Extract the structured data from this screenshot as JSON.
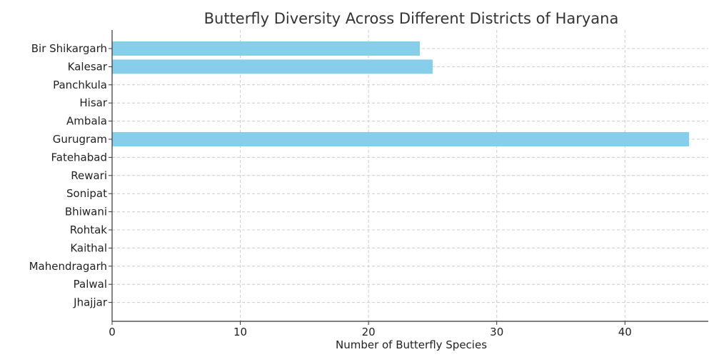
{
  "chart_data": {
    "type": "bar",
    "orientation": "horizontal",
    "title": "Butterfly Diversity Across Different Districts of Haryana",
    "xlabel": "Number of Butterfly Species",
    "ylabel": "",
    "xlim": [
      0,
      46.5
    ],
    "xticks": [
      0,
      10,
      20,
      30,
      40
    ],
    "grid": true,
    "bar_color": "#87CEEB",
    "categories": [
      "Bir Shikargarh",
      "Kalesar",
      "Panchkula",
      "Hisar",
      "Ambala",
      "Gurugram",
      "Fatehabad",
      "Rewari",
      "Sonipat",
      "Bhiwani",
      "Rohtak",
      "Kaithal",
      "Mahendragarh",
      "Palwal",
      "Jhajjar"
    ],
    "values": [
      24,
      25,
      0,
      0,
      0,
      45,
      0,
      0,
      0,
      0,
      0,
      0,
      0,
      0,
      0
    ]
  }
}
